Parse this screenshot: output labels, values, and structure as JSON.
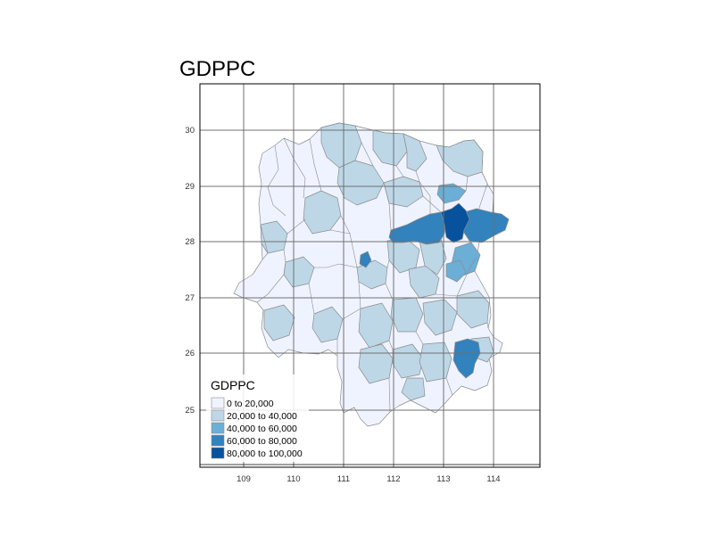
{
  "title": "GDPPC",
  "legend": {
    "title": "GDPPC",
    "classes": [
      {
        "label": "0 to 20,000",
        "color": "#eff3ff"
      },
      {
        "label": "20,000 to 40,000",
        "color": "#bdd7e7"
      },
      {
        "label": "40,000 to 60,000",
        "color": "#6baed6"
      },
      {
        "label": "60,000 to 80,000",
        "color": "#3182bd"
      },
      {
        "label": "80,000 to 100,000",
        "color": "#08519c"
      }
    ]
  },
  "axes": {
    "x_ticks": [
      "109",
      "110",
      "111",
      "112",
      "113",
      "114"
    ],
    "y_ticks": [
      "30",
      "29",
      "28",
      "27",
      "26",
      "25"
    ]
  },
  "colors": {
    "grid": "#707070",
    "frame": "#000000",
    "county_border": "#8c8c8c"
  }
}
